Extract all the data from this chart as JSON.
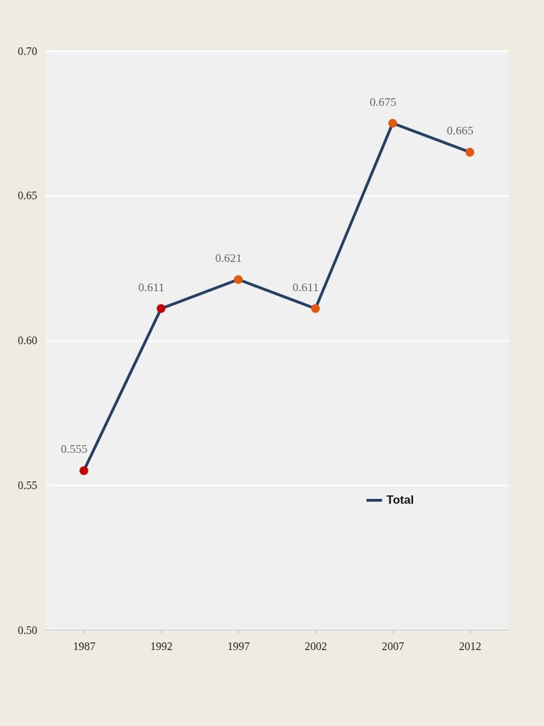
{
  "chart_data": {
    "type": "line",
    "categories": [
      "1987",
      "1992",
      "1997",
      "2002",
      "2007",
      "2012"
    ],
    "series": [
      {
        "name": "Total",
        "color": "#243f60",
        "colors": [
          "#c00000",
          "#c00000",
          "#e05a10",
          "#e05a10",
          "#e05a10",
          "#e05a10"
        ],
        "values": [
          0.555,
          0.611,
          0.621,
          0.611,
          0.675,
          0.665
        ]
      }
    ],
    "ylim": [
      0.5,
      0.7
    ],
    "yticks": [
      {
        "value": 0.5,
        "label": "0.50"
      },
      0.55,
      {
        "value": 0.6,
        "label": "0.60"
      },
      0.65,
      {
        "value": 0.7,
        "label": "0.70"
      }
    ],
    "grid": "y",
    "legend": "bottom right",
    "marker": "circle",
    "line_style": "solid",
    "data_labels": true
  }
}
